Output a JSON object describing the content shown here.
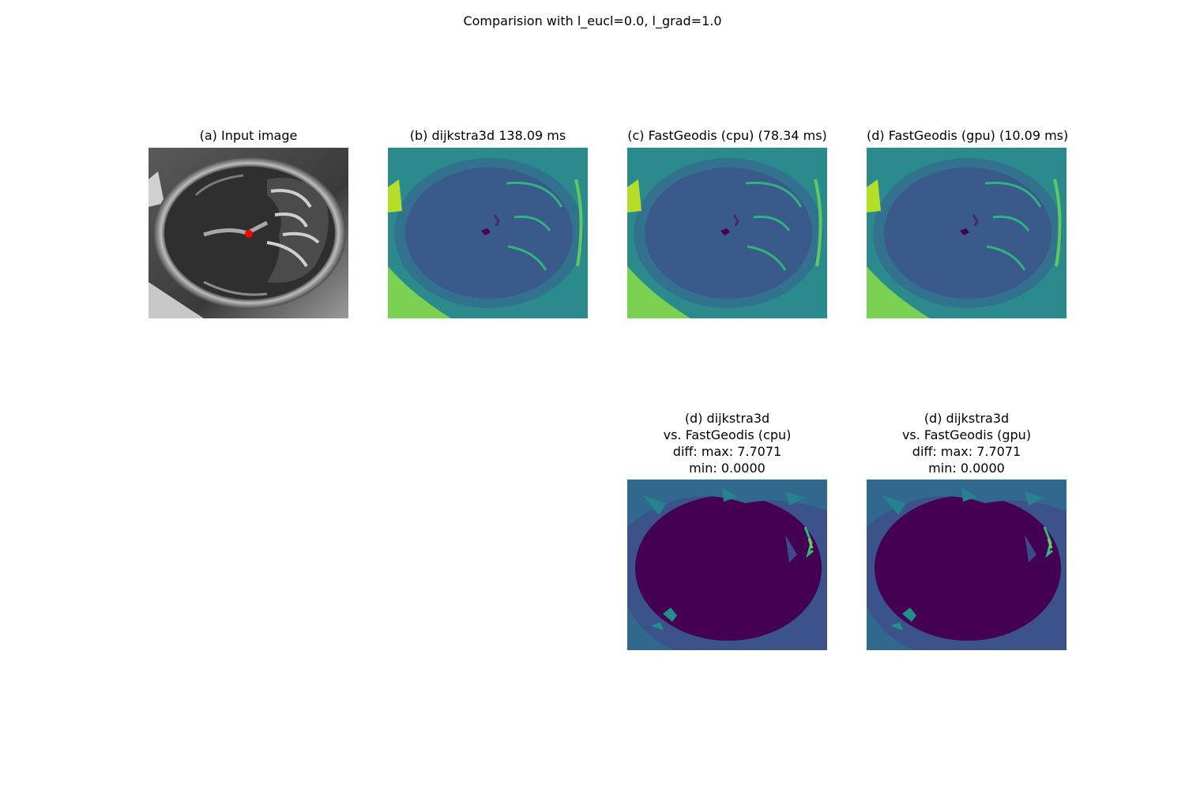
{
  "figure": {
    "suptitle": "Comparision with l_eucl=0.0, l_grad=1.0",
    "panels": {
      "a": {
        "title": "(a) Input image"
      },
      "b": {
        "title": "(b) dijkstra3d 138.09 ms"
      },
      "c": {
        "title": "(c) FastGeodis (cpu) (78.34 ms)"
      },
      "d": {
        "title": "(d) FastGeodis (gpu) (10.09 ms)"
      },
      "e": {
        "title_lines": [
          "(d) dijkstra3d",
          "vs. FastGeodis (cpu)",
          "diff: max: 7.7071",
          "min: 0.0000"
        ]
      },
      "f": {
        "title_lines": [
          "(d) dijkstra3d",
          "vs. FastGeodis (gpu)",
          "diff: max: 7.7071",
          "min: 0.0000"
        ]
      }
    }
  },
  "colors": {
    "seed_point": "#ff0000",
    "viridis_dark": "#440154",
    "viridis_mid": "#3b528b",
    "viridis_teal": "#21908d",
    "viridis_green": "#5ec962",
    "viridis_yellow": "#c8e020"
  }
}
